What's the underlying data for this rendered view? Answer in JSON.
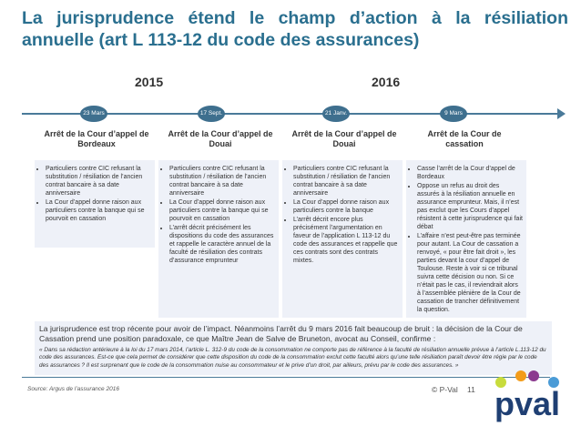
{
  "title": "La jurisprudence étend le champ d’action à la résiliation annuelle (art L 113-12 du code des assurances)",
  "years": [
    "2015",
    "2016"
  ],
  "events": [
    {
      "date": "23 Mars",
      "court": "Arrêt de la Cour d’appel de Bordeaux",
      "points": [
        "Particuliers contre CIC refusant la substitution / résiliation de l’ancien contrat bancaire à sa date anniversaire",
        "La Cour d’appel donne raison aux particuliers contre la banque qui se pourvoit en cassation"
      ]
    },
    {
      "date": "17 Sept.",
      "court": "Arrêt de la Cour d’appel de Douai",
      "points": [
        "Particuliers contre CIC refusant la substitution / résiliation de l’ancien contrat bancaire à sa date anniversaire",
        "La Cour d’appel donne raison aux particuliers contre la banque qui se pourvoit en cassation",
        "L’arrêt décrit précisément les dispositions du code des assurances et rappelle le caractère annuel de la faculté de résiliation des contrats d’assurance emprunteur"
      ]
    },
    {
      "date": "21 Janv.",
      "court": "Arrêt de la Cour d’appel de Douai",
      "points": [
        "Particuliers contre CIC refusant la substitution / résiliation de l’ancien contrat bancaire à sa date anniversaire",
        "La Cour d’appel donne raison aux particuliers contre la banque",
        "L’arrêt décrit encore plus précisément l’argumentation en faveur de l’application L 113-12 du code des assurances et rappelle que ces contrats sont des contrats mixtes."
      ]
    },
    {
      "date": "9 Mars",
      "court": "Arrêt de la Cour de cassation",
      "points": [
        "Casse l’arrêt de la Cour d’appel de Bordeaux",
        "Oppose un refus au droit des assurés à la résiliation annuelle en assurance emprunteur. Mais, il n’est pas exclut que les Cours d’appel résistent à cette jurisprudence qui fait débat",
        "L’affaire n’est peut-être pas terminée pour autant. La Cour de cassation a renvoyé, « pour être fait droit », les parties devant la cour d’appel de Toulouse. Reste à voir si ce tribunal suivra cette décision ou non. Si ce n’était pas le cas, il reviendrait alors à l’assemblée plénière de la Cour de cassation de trancher définitivement la question."
      ]
    }
  ],
  "summary": {
    "text": "La jurisprudence est trop récente pour avoir de l’impact. Néanmoins l’arrêt du 9 mars 2016 fait beaucoup de bruit : la décision de la Cour de Cassation prend une position paradoxale, ce que Maître Jean de Salve de Bruneton, avocat au Conseil, confirme :",
    "quote": "« Dans sa rédaction antérieure à la loi du 17 mars 2014, l’article L. 312-9 du code de la consommation ne comporte pas de référence à la faculté de résiliation annuelle prévue à l’article L.113-12 du code des assurances. Est-ce que cela permet de considérer que cette disposition du code de la consommation exclut cette faculté alors qu’une telle résiliation paraît devoir être régie par le code des assurances ? Il est surprenant que le code de la consommation nuise au consommateur et le prive d’un droit, par ailleurs, prévu par le code des assurances. »"
  },
  "footer": {
    "source": "Source: Argus de l’assurance 2016",
    "copyright": "© P-Val",
    "page": "11",
    "logo_text": "pval"
  },
  "colors": {
    "title": "#2a6f8f",
    "timeline": "#4a7a99",
    "dot": "#3e6f8e",
    "box": "#eef1f8"
  }
}
